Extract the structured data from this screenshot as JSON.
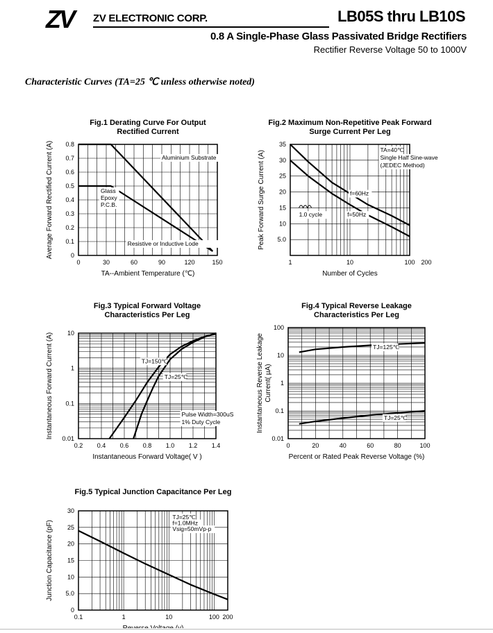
{
  "header": {
    "logo_text": "ZV",
    "company": "ZV ELECTRONIC CORP.",
    "part_number": "LB05S thru LB10S",
    "title": "0.8  A Single-Phase Glass Passivated Bridge Rectifiers",
    "subtitle": "Rectifier Reverse Voltage 50 to 1000V"
  },
  "section_title": "Characteristic Curves (TA=25  ℃ unless otherwise noted)",
  "chart_data": [
    {
      "type": "line",
      "title": "Fig.1 Derating Curve For Output\nRectified Current",
      "xlabel": "TA--Ambient Temperature (℃)",
      "ylabel": "Average Forward Rectified Current (A)",
      "xscale": "linear",
      "yscale": "linear",
      "xlim": [
        0,
        150
      ],
      "ylim": [
        0,
        0.8
      ],
      "xticks": [
        0,
        30,
        60,
        90,
        120,
        150
      ],
      "xticklabels": [
        "0",
        "30",
        "60",
        "90",
        "120",
        "150"
      ],
      "yticks": [
        0,
        0.1,
        0.2,
        0.3,
        0.4,
        0.5,
        0.6,
        0.7,
        0.8
      ],
      "yticklabels": [
        "0",
        "0.1",
        "0.2",
        "0.3",
        "0.4",
        "0.5",
        "0.6",
        "0.7",
        "0.8"
      ],
      "xgrid": [
        0,
        10,
        20,
        30,
        40,
        50,
        60,
        70,
        80,
        90,
        100,
        110,
        120,
        130,
        140,
        150
      ],
      "ygrid": [
        0,
        0.1,
        0.2,
        0.3,
        0.4,
        0.5,
        0.6,
        0.7,
        0.8
      ],
      "series": [
        {
          "name": "Aluminium Substrate",
          "x": [
            0,
            35,
            145
          ],
          "y": [
            0.8,
            0.8,
            0.03
          ]
        },
        {
          "name": "Glass-Epoxy P.C.B.",
          "x": [
            0,
            35,
            145
          ],
          "y": [
            0.5,
            0.5,
            0.03
          ]
        }
      ],
      "annotations": [
        {
          "text": "Aluminium Substrate",
          "x": 90,
          "y": 0.69
        },
        {
          "text": "Glass",
          "x": 24,
          "y": 0.45
        },
        {
          "text": "Epoxy",
          "x": 24,
          "y": 0.4
        },
        {
          "text": "P.C.B.",
          "x": 24,
          "y": 0.35
        },
        {
          "text": "Resistive or Inductive Lode",
          "x": 53,
          "y": 0.07
        }
      ]
    },
    {
      "type": "line",
      "title": "Fig.2 Maximum Non-Repetitive Peak Forward\nSurge Current Per Leg",
      "xlabel": "Number of Cycles",
      "ylabel": "Peak Forward Surge Current (A)",
      "xscale": "log",
      "yscale": "linear",
      "xlim": [
        1,
        100
      ],
      "ylim": [
        0,
        35
      ],
      "xticks": [
        1,
        10,
        100
      ],
      "xticklabels": [
        "1",
        "10",
        "100"
      ],
      "extra_xlabel": "200",
      "yticks": [
        5,
        10,
        15,
        20,
        25,
        30,
        35
      ],
      "yticklabels": [
        "5.0",
        "10",
        "15",
        "20",
        "25",
        "30",
        "35"
      ],
      "xgrid": [
        2,
        3,
        4,
        5,
        6,
        7,
        8,
        9,
        10,
        20,
        30,
        40,
        50,
        60,
        70,
        80,
        90,
        100
      ],
      "ygrid": [
        5,
        10,
        15,
        20,
        25,
        30,
        35
      ],
      "series": [
        {
          "name": "f=60Hz",
          "x": [
            1,
            2,
            5,
            10,
            20,
            50,
            100
          ],
          "y": [
            35,
            29.5,
            23,
            19.5,
            16,
            12.5,
            9.5
          ]
        },
        {
          "name": "f=50Hz",
          "x": [
            1,
            2,
            5,
            10,
            20,
            50,
            100
          ],
          "y": [
            30,
            25,
            19.5,
            16,
            12.7,
            9,
            6
          ]
        }
      ],
      "annotations": [
        {
          "text": "TA=40℃",
          "x": 32,
          "y": 32.6
        },
        {
          "text": "Single Half Sine-wave",
          "x": 32,
          "y": 30.2
        },
        {
          "text": "(JEDEC Method)",
          "x": 32,
          "y": 27.8
        },
        {
          "text": "f=60Hz",
          "x": 10,
          "y": 18.9
        },
        {
          "text": "f=50Hz",
          "x": 9,
          "y": 12.2
        },
        {
          "text": "1.0 cycle",
          "x": 1.4,
          "y": 12.2
        }
      ]
    },
    {
      "type": "line",
      "title": "Fig.3 Typical Forward Voltage\nCharacteristics Per Leg",
      "xlabel": "Instantaneous Forward Voltage( V )",
      "ylabel": "Instantaneous Forward Current (A)",
      "xscale": "linear",
      "yscale": "log",
      "xlim": [
        0.2,
        1.4
      ],
      "ylim": [
        0.01,
        10
      ],
      "xticks": [
        0.2,
        0.4,
        0.6,
        0.8,
        1.0,
        1.2,
        1.4
      ],
      "xticklabels": [
        "0.2",
        "0.4",
        "0.6",
        "0.8",
        "1.0",
        "1.2",
        "1.4"
      ],
      "yticks": [
        0.01,
        0.1,
        1,
        10
      ],
      "yticklabels": [
        "0.01",
        "0.1",
        "1",
        "10"
      ],
      "xgrid": [
        0.2,
        0.3,
        0.4,
        0.5,
        0.6,
        0.7,
        0.8,
        0.9,
        1.0,
        1.1,
        1.2,
        1.3,
        1.4
      ],
      "ygrid": [
        0.02,
        0.03,
        0.04,
        0.05,
        0.06,
        0.07,
        0.08,
        0.09,
        0.1,
        0.2,
        0.3,
        0.4,
        0.5,
        0.6,
        0.7,
        0.8,
        0.9,
        1,
        2,
        3,
        4,
        5,
        6,
        7,
        8,
        9,
        10
      ],
      "series": [
        {
          "name": "TJ=150℃",
          "x": [
            0.47,
            0.6,
            0.7,
            0.8,
            0.9,
            1.0,
            1.1,
            1.2,
            1.3,
            1.4
          ],
          "y": [
            0.01,
            0.04,
            0.12,
            0.4,
            1.1,
            2.5,
            4.2,
            6,
            8,
            9.5
          ]
        },
        {
          "name": "TJ=25℃",
          "x": [
            0.68,
            0.75,
            0.8,
            0.85,
            0.9,
            1.0,
            1.1,
            1.2,
            1.3,
            1.4
          ],
          "y": [
            0.01,
            0.05,
            0.12,
            0.28,
            0.6,
            1.8,
            3.5,
            5.5,
            7.8,
            10
          ]
        }
      ],
      "annotations": [
        {
          "text": "TJ=150℃",
          "x": 0.75,
          "y": 1.4
        },
        {
          "text": "TJ=25℃",
          "x": 0.95,
          "y": 0.5
        },
        {
          "text": "Pulse Width=300uS",
          "x": 1.1,
          "y": 0.043
        },
        {
          "text": "1% Duty Cycle",
          "x": 1.1,
          "y": 0.026
        }
      ]
    },
    {
      "type": "line",
      "title": "Fig.4 Typical Reverse Leakage\nCharacteristics Per Leg",
      "xlabel": "Percent or Rated Peak Reverse Voltage (%)",
      "ylabel": "Instantaneous Reverse Leakage\nCurrent( µA)",
      "xscale": "linear",
      "yscale": "log",
      "xlim": [
        0,
        100
      ],
      "ylim": [
        0.01,
        100
      ],
      "xticks": [
        0,
        20,
        40,
        60,
        80,
        100
      ],
      "xticklabels": [
        "0",
        "20",
        "40",
        "60",
        "80",
        "100"
      ],
      "yticks": [
        0.01,
        0.1,
        1,
        10,
        100
      ],
      "yticklabels": [
        "0.01",
        "0.1",
        "1",
        "10",
        "100"
      ],
      "xgrid": [
        0,
        10,
        20,
        30,
        40,
        50,
        60,
        70,
        80,
        90,
        100
      ],
      "ygrid": [
        0.02,
        0.03,
        0.04,
        0.05,
        0.06,
        0.07,
        0.08,
        0.09,
        0.1,
        0.2,
        0.3,
        0.4,
        0.5,
        0.6,
        0.7,
        0.8,
        0.9,
        1,
        2,
        3,
        4,
        5,
        6,
        7,
        8,
        9,
        10,
        20,
        30,
        40,
        50,
        60,
        70,
        80,
        90,
        100
      ],
      "series": [
        {
          "name": "TJ=125℃",
          "x": [
            8,
            20,
            40,
            60,
            80,
            100
          ],
          "y": [
            13,
            16.5,
            20,
            23,
            25.5,
            28
          ]
        },
        {
          "name": "TJ=25℃",
          "x": [
            8,
            20,
            40,
            60,
            80,
            100
          ],
          "y": [
            0.034,
            0.042,
            0.055,
            0.07,
            0.085,
            0.1
          ]
        }
      ],
      "annotations": [
        {
          "text": "TJ=125℃",
          "x": 62,
          "y": 17
        },
        {
          "text": "TJ=25℃",
          "x": 70,
          "y": 0.048
        }
      ]
    },
    {
      "type": "line",
      "title": "Fig.5 Typical Junction Capacitance Per Leg",
      "xlabel": "Reverse Voltage (v)",
      "ylabel": "Junction Capacitance (pF)",
      "xscale": "log",
      "yscale": "linear",
      "xlim": [
        0.1,
        200
      ],
      "ylim": [
        0,
        30
      ],
      "xticks": [
        0.1,
        1,
        10,
        100,
        200
      ],
      "xticklabels": [
        "0.1",
        "1",
        "10",
        "100",
        "200"
      ],
      "yticks": [
        0,
        5,
        10,
        15,
        20,
        25,
        30
      ],
      "yticklabels": [
        "0",
        "5.0",
        "10",
        "15",
        "20",
        "25",
        "30"
      ],
      "xgrid": [
        0.2,
        0.3,
        0.4,
        0.5,
        0.6,
        0.7,
        0.8,
        0.9,
        1,
        2,
        3,
        4,
        5,
        6,
        7,
        8,
        9,
        10,
        20,
        30,
        40,
        50,
        60,
        70,
        80,
        90,
        100,
        200
      ],
      "ygrid": [
        0,
        5,
        10,
        15,
        20,
        25,
        30
      ],
      "series": [
        {
          "name": "Junction Capacitance",
          "x": [
            0.1,
            0.3,
            1,
            3,
            10,
            30,
            100,
            200
          ],
          "y": [
            24,
            20.8,
            17.2,
            14,
            10.7,
            7.7,
            4.8,
            3.2
          ]
        }
      ],
      "annotations": [
        {
          "text": "TJ=25℃",
          "x": 12,
          "y": 27.5
        },
        {
          "text": "f=1.0MHz",
          "x": 12,
          "y": 25.7
        },
        {
          "text": "Vsig=50mVp-p",
          "x": 12,
          "y": 23.9
        }
      ]
    }
  ]
}
